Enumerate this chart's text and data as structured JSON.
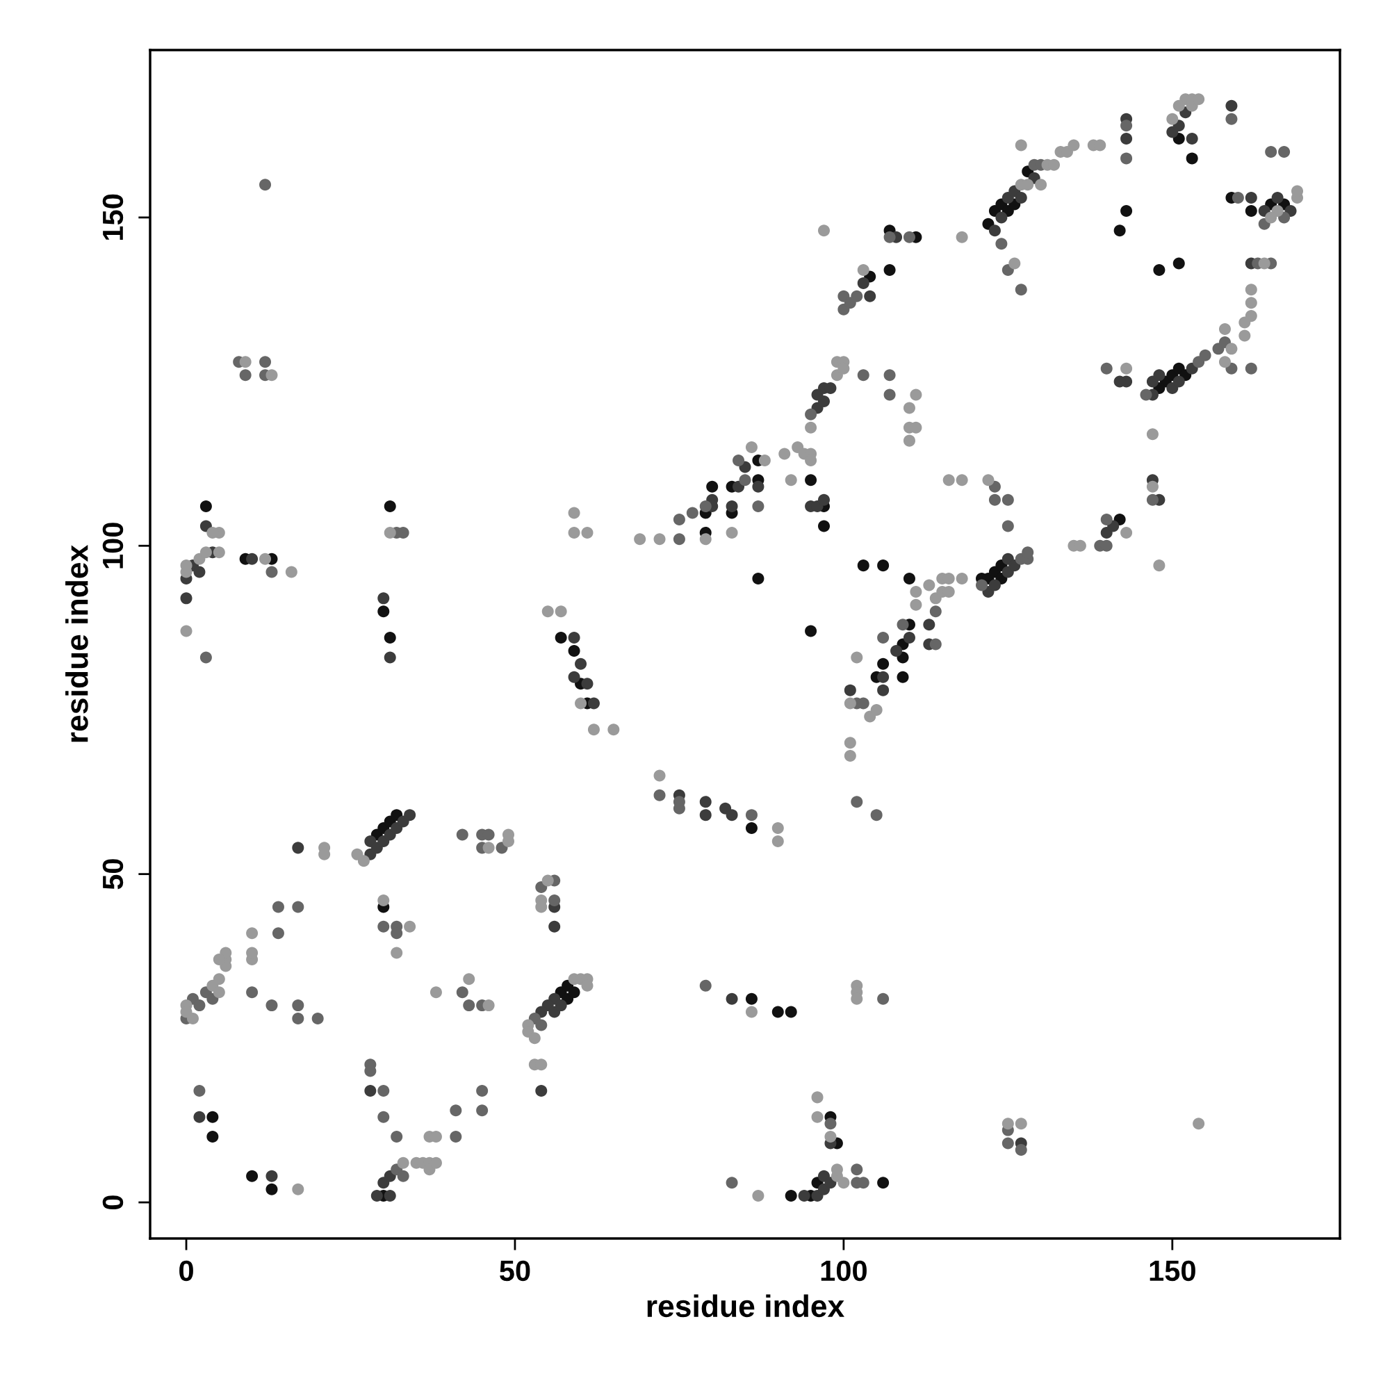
{
  "chart_data": {
    "type": "scatter",
    "xlabel": "residue index",
    "ylabel": "residue index",
    "xlim": [
      -5.5,
      175.5
    ],
    "ylim": [
      -5.5,
      175.5
    ],
    "xticks": [
      0,
      50,
      100,
      150
    ],
    "yticks": [
      0,
      50,
      100,
      150
    ],
    "grid": false,
    "legend": false,
    "marker": "circle",
    "series": [
      {
        "color": "#111111",
        "x": [
          4,
          4,
          10,
          13,
          3,
          31,
          30,
          31,
          30,
          29,
          30,
          31,
          32,
          30,
          57,
          59,
          60,
          61,
          57,
          58,
          58,
          59,
          9,
          13,
          80,
          79,
          79,
          83,
          83,
          87,
          87,
          86,
          90,
          92,
          86,
          92,
          95,
          96,
          98,
          99,
          87,
          95,
          97,
          97,
          95,
          103,
          106,
          110,
          106,
          105,
          109,
          109,
          110,
          109,
          121,
          122,
          123,
          124,
          124,
          106,
          104,
          107,
          111,
          107,
          122,
          123,
          124,
          125,
          126,
          128,
          142,
          143,
          151,
          153,
          151,
          148,
          159,
          149,
          150,
          151,
          152,
          148,
          142,
          162,
          167,
          165
        ],
        "values": [
          13,
          10,
          4,
          2,
          106,
          106,
          90,
          86,
          45,
          56,
          57,
          58,
          59,
          1,
          86,
          84,
          79,
          76,
          32,
          33,
          31,
          32,
          98,
          98,
          109,
          105,
          102,
          109,
          105,
          113,
          110,
          57,
          29,
          29,
          31,
          1,
          1,
          3,
          13,
          9,
          95,
          110,
          106,
          103,
          87,
          97,
          97,
          95,
          82,
          80,
          83,
          85,
          88,
          80,
          95,
          95,
          96,
          95,
          97,
          3,
          141,
          142,
          147,
          148,
          149,
          151,
          152,
          151,
          152,
          157,
          148,
          151,
          162,
          159,
          143,
          142,
          153,
          125,
          126,
          127,
          126,
          124,
          104,
          151,
          152,
          152
        ]
      },
      {
        "color": "#3c3c3c",
        "x": [
          0,
          1,
          2,
          0,
          3,
          10,
          4,
          30,
          31,
          28,
          28,
          29,
          30,
          31,
          32,
          33,
          34,
          17,
          29,
          31,
          30,
          31,
          13,
          2,
          28,
          56,
          55,
          56,
          54,
          57,
          59,
          60,
          59,
          61,
          62,
          56,
          56,
          54,
          75,
          79,
          79,
          82,
          83,
          84,
          80,
          80,
          87,
          83,
          85,
          83,
          94,
          96,
          97,
          97,
          98,
          95,
          96,
          97,
          98,
          101,
          106,
          106,
          108,
          110,
          113,
          113,
          122,
          123,
          125,
          125,
          126,
          96,
          97,
          97,
          98,
          96,
          104,
          103,
          108,
          123,
          124,
          125,
          126,
          127,
          129,
          143,
          150,
          151,
          152,
          153,
          140,
          141,
          147,
          148,
          143,
          147,
          147,
          148,
          150,
          151,
          153,
          162,
          164,
          166,
          168,
          162,
          159,
          127,
          143,
          142
        ],
        "values": [
          95,
          97,
          96,
          92,
          103,
          98,
          99,
          92,
          83,
          53,
          55,
          54,
          55,
          56,
          57,
          58,
          59,
          54,
          1,
          1,
          3,
          4,
          4,
          13,
          17,
          31,
          30,
          29,
          29,
          30,
          86,
          82,
          80,
          79,
          76,
          45,
          42,
          17,
          62,
          61,
          59,
          60,
          59,
          109,
          107,
          106,
          109,
          106,
          112,
          31,
          1,
          1,
          2,
          4,
          9,
          106,
          106,
          107,
          3,
          78,
          80,
          78,
          84,
          86,
          88,
          85,
          93,
          94,
          96,
          98,
          97,
          121,
          122,
          124,
          124,
          123,
          138,
          140,
          147,
          148,
          150,
          153,
          154,
          153,
          156,
          162,
          163,
          164,
          166,
          162,
          102,
          103,
          110,
          107,
          125,
          123,
          125,
          126,
          124,
          125,
          127,
          153,
          151,
          153,
          151,
          143,
          167,
          9,
          165,
          125
        ]
      },
      {
        "color": "#666666",
        "x": [
          0,
          1,
          2,
          3,
          4,
          2,
          10,
          13,
          14,
          14,
          17,
          17,
          17,
          20,
          28,
          28,
          30,
          30,
          32,
          32,
          33,
          30,
          32,
          32,
          41,
          41,
          45,
          45,
          42,
          43,
          45,
          42,
          45,
          46,
          45,
          48,
          53,
          54,
          54,
          56,
          56,
          33,
          32,
          3,
          13,
          8,
          9,
          12,
          12,
          12,
          72,
          75,
          75,
          75,
          77,
          79,
          84,
          85,
          87,
          86,
          75,
          79,
          83,
          98,
          102,
          102,
          103,
          106,
          102,
          105,
          102,
          103,
          106,
          109,
          114,
          114,
          121,
          123,
          125,
          123,
          125,
          127,
          128,
          128,
          95,
          103,
          107,
          107,
          100,
          100,
          101,
          102,
          107,
          110,
          124,
          125,
          127,
          129,
          130,
          143,
          143,
          140,
          146,
          147,
          139,
          140,
          140,
          154,
          155,
          157,
          158,
          159,
          162,
          163,
          165,
          159,
          164,
          167,
          165,
          167,
          125,
          127,
          125,
          160
        ],
        "values": [
          28,
          31,
          30,
          32,
          31,
          17,
          32,
          30,
          45,
          41,
          45,
          30,
          28,
          28,
          21,
          20,
          17,
          13,
          10,
          5,
          4,
          42,
          42,
          41,
          10,
          14,
          14,
          17,
          32,
          30,
          30,
          56,
          56,
          56,
          54,
          54,
          28,
          27,
          48,
          46,
          49,
          102,
          102,
          83,
          96,
          128,
          126,
          128,
          126,
          155,
          62,
          61,
          104,
          101,
          105,
          106,
          113,
          110,
          106,
          59,
          60,
          33,
          3,
          12,
          5,
          3,
          3,
          31,
          61,
          59,
          76,
          76,
          86,
          88,
          85,
          90,
          94,
          107,
          107,
          109,
          103,
          98,
          98,
          99,
          120,
          126,
          126,
          123,
          136,
          138,
          137,
          138,
          147,
          147,
          146,
          142,
          139,
          158,
          158,
          159,
          164,
          127,
          123,
          107,
          100,
          100,
          104,
          128,
          129,
          130,
          131,
          127,
          127,
          143,
          143,
          165,
          149,
          150,
          160,
          160,
          9,
          8,
          11,
          153
        ]
      },
      {
        "color": "#9a9a9a",
        "x": [
          0,
          1,
          0,
          4,
          5,
          5,
          6,
          6,
          6,
          5,
          10,
          10,
          10,
          21,
          21,
          17,
          26,
          27,
          33,
          35,
          36,
          37,
          37,
          38,
          37,
          38,
          30,
          32,
          34,
          38,
          43,
          46,
          49,
          49,
          46,
          52,
          52,
          53,
          59,
          60,
          61,
          61,
          54,
          54,
          55,
          53,
          54,
          31,
          0,
          0,
          0,
          2,
          3,
          5,
          5,
          4,
          16,
          12,
          9,
          13,
          55,
          57,
          59,
          59,
          61,
          62,
          65,
          60,
          69,
          72,
          72,
          79,
          83,
          86,
          88,
          90,
          90,
          86,
          87,
          96,
          96,
          98,
          99,
          99,
          100,
          102,
          102,
          102,
          101,
          101,
          101,
          102,
          104,
          105,
          111,
          111,
          113,
          114,
          115,
          115,
          116,
          116,
          116,
          118,
          118,
          122,
          92,
          91,
          93,
          94,
          95,
          95,
          95,
          99,
          99,
          100,
          100,
          110,
          110,
          111,
          110,
          111,
          103,
          97,
          118,
          127,
          131,
          132,
          133,
          134,
          135,
          138,
          139,
          127,
          128,
          126,
          130,
          152,
          153,
          153,
          154,
          150,
          151,
          135,
          136,
          143,
          147,
          148,
          147,
          143,
          158,
          161,
          161,
          162,
          162,
          162,
          159,
          158,
          164,
          169,
          169,
          166,
          165,
          125,
          127,
          154
        ],
        "values": [
          30,
          28,
          29,
          33,
          34,
          32,
          36,
          37,
          38,
          37,
          41,
          37,
          38,
          54,
          53,
          2,
          53,
          52,
          6,
          6,
          6,
          6,
          5,
          6,
          10,
          10,
          46,
          38,
          42,
          32,
          34,
          30,
          55,
          56,
          54,
          27,
          26,
          25,
          34,
          34,
          34,
          33,
          46,
          45,
          49,
          21,
          21,
          102,
          87,
          96,
          97,
          98,
          99,
          99,
          102,
          102,
          96,
          98,
          128,
          126,
          90,
          90,
          105,
          102,
          102,
          72,
          72,
          76,
          101,
          101,
          65,
          101,
          102,
          115,
          113,
          57,
          55,
          29,
          1,
          16,
          13,
          10,
          4,
          5,
          3,
          33,
          32,
          31,
          70,
          68,
          76,
          83,
          74,
          75,
          91,
          93,
          94,
          92,
          93,
          95,
          95,
          93,
          110,
          110,
          95,
          110,
          110,
          114,
          115,
          114,
          114,
          118,
          113,
          126,
          128,
          128,
          127,
          121,
          118,
          118,
          116,
          123,
          142,
          148,
          147,
          161,
          158,
          158,
          160,
          160,
          161,
          161,
          161,
          155,
          155,
          143,
          155,
          168,
          167,
          168,
          168,
          165,
          167,
          100,
          100,
          102,
          109,
          97,
          117,
          127,
          133,
          132,
          134,
          135,
          137,
          139,
          130,
          128,
          143,
          153,
          154,
          151,
          150,
          12,
          12,
          12
        ]
      }
    ]
  }
}
